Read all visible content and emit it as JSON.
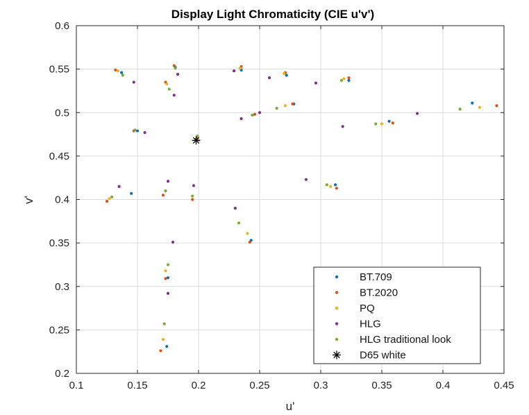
{
  "chart_data": {
    "type": "scatter",
    "title": "Display Light Chromaticity (CIE u'v')",
    "xlabel": "u'",
    "ylabel": "v'",
    "xlim": [
      0.1,
      0.45
    ],
    "ylim": [
      0.2,
      0.6
    ],
    "xticks": [
      "0.1",
      "0.15",
      "0.2",
      "0.25",
      "0.3",
      "0.35",
      "0.4",
      "0.45"
    ],
    "yticks": [
      "0.2",
      "0.25",
      "0.3",
      "0.35",
      "0.4",
      "0.45",
      "0.5",
      "0.55",
      "0.6"
    ],
    "grid": true,
    "legend_position": "bottom-right",
    "series": [
      {
        "name": "BT.709",
        "color": "#0072BD",
        "marker": "dot",
        "points": [
          [
            0.137,
            0.546
          ],
          [
            0.181,
            0.552
          ],
          [
            0.235,
            0.549
          ],
          [
            0.272,
            0.543
          ],
          [
            0.323,
            0.537
          ],
          [
            0.15,
            0.479
          ],
          [
            0.278,
            0.51
          ],
          [
            0.356,
            0.49
          ],
          [
            0.424,
            0.511
          ],
          [
            0.145,
            0.407
          ],
          [
            0.312,
            0.417
          ],
          [
            0.243,
            0.353
          ],
          [
            0.175,
            0.31
          ],
          [
            0.174,
            0.231
          ]
        ]
      },
      {
        "name": "BT.2020",
        "color": "#D95319",
        "marker": "dot",
        "points": [
          [
            0.132,
            0.549
          ],
          [
            0.18,
            0.554
          ],
          [
            0.235,
            0.553
          ],
          [
            0.271,
            0.546
          ],
          [
            0.323,
            0.54
          ],
          [
            0.173,
            0.535
          ],
          [
            0.147,
            0.479
          ],
          [
            0.246,
            0.498
          ],
          [
            0.277,
            0.51
          ],
          [
            0.359,
            0.488
          ],
          [
            0.444,
            0.508
          ],
          [
            0.125,
            0.398
          ],
          [
            0.171,
            0.405
          ],
          [
            0.195,
            0.4
          ],
          [
            0.313,
            0.413
          ],
          [
            0.242,
            0.351
          ],
          [
            0.173,
            0.309
          ],
          [
            0.169,
            0.226
          ],
          [
            0.199,
            0.471
          ]
        ]
      },
      {
        "name": "PQ",
        "color": "#EDB120",
        "marker": "dot",
        "points": [
          [
            0.134,
            0.548
          ],
          [
            0.234,
            0.551
          ],
          [
            0.27,
            0.545
          ],
          [
            0.319,
            0.539
          ],
          [
            0.174,
            0.533
          ],
          [
            0.271,
            0.508
          ],
          [
            0.35,
            0.487
          ],
          [
            0.43,
            0.506
          ],
          [
            0.127,
            0.401
          ],
          [
            0.308,
            0.415
          ],
          [
            0.24,
            0.361
          ],
          [
            0.173,
            0.318
          ],
          [
            0.171,
            0.239
          ],
          [
            0.2,
            0.468
          ]
        ]
      },
      {
        "name": "HLG",
        "color": "#7E2F8E",
        "marker": "dot",
        "points": [
          [
            0.147,
            0.535
          ],
          [
            0.183,
            0.544
          ],
          [
            0.229,
            0.548
          ],
          [
            0.258,
            0.54
          ],
          [
            0.296,
            0.534
          ],
          [
            0.18,
            0.52
          ],
          [
            0.156,
            0.477
          ],
          [
            0.235,
            0.493
          ],
          [
            0.25,
            0.5
          ],
          [
            0.318,
            0.484
          ],
          [
            0.379,
            0.499
          ],
          [
            0.135,
            0.415
          ],
          [
            0.175,
            0.421
          ],
          [
            0.196,
            0.416
          ],
          [
            0.288,
            0.423
          ],
          [
            0.23,
            0.39
          ],
          [
            0.179,
            0.351
          ],
          [
            0.175,
            0.292
          ],
          [
            0.198,
            0.469
          ]
        ]
      },
      {
        "name": "HLG traditional look",
        "color": "#77AC30",
        "marker": "dot",
        "points": [
          [
            0.138,
            0.543
          ],
          [
            0.181,
            0.551
          ],
          [
            0.176,
            0.527
          ],
          [
            0.317,
            0.537
          ],
          [
            0.148,
            0.48
          ],
          [
            0.244,
            0.497
          ],
          [
            0.264,
            0.505
          ],
          [
            0.345,
            0.487
          ],
          [
            0.414,
            0.504
          ],
          [
            0.129,
            0.403
          ],
          [
            0.173,
            0.41
          ],
          [
            0.195,
            0.404
          ],
          [
            0.305,
            0.417
          ],
          [
            0.233,
            0.373
          ],
          [
            0.175,
            0.325
          ],
          [
            0.172,
            0.257
          ],
          [
            0.199,
            0.473
          ]
        ]
      },
      {
        "name": "D65 white",
        "color": "#000000",
        "marker": "star",
        "points": [
          [
            0.198,
            0.468
          ]
        ]
      }
    ]
  }
}
